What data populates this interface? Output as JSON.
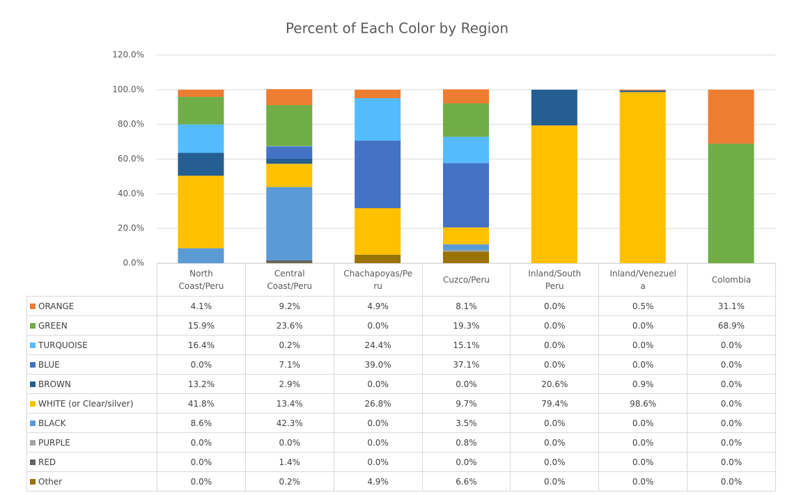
{
  "chart_data": {
    "type": "stacked_bar",
    "title": "Percent of Each Color by Region",
    "categories": [
      "North Coast/Peru",
      "Central Coast/Peru",
      "Chachapoyas/Peru",
      "Cuzco/Peru",
      "Inland/South Peru",
      "Inland/Venezuela",
      "Colombia"
    ],
    "series": [
      {
        "name": "ORANGE",
        "color": "#ed7d31",
        "values": [
          4.1,
          9.2,
          4.9,
          8.1,
          0.0,
          0.5,
          31.1
        ],
        "value_labels": [
          "4.1%",
          "9.2%",
          "4.9%",
          "8.1%",
          "0.0%",
          "0.5%",
          "31.1%"
        ]
      },
      {
        "name": "GREEN",
        "color": "#70ad47",
        "values": [
          15.9,
          23.6,
          0.0,
          19.3,
          0.0,
          0.0,
          68.9
        ],
        "value_labels": [
          "15.9%",
          "23.6%",
          "0.0%",
          "19.3%",
          "0.0%",
          "0.0%",
          "68.9%"
        ]
      },
      {
        "name": "TURQUOISE",
        "color": "#55bbff",
        "values": [
          16.4,
          0.2,
          24.4,
          15.1,
          0.0,
          0.0,
          0.0
        ],
        "value_labels": [
          "16.4%",
          "0.2%",
          "24.4%",
          "15.1%",
          "0.0%",
          "0.0%",
          "0.0%"
        ]
      },
      {
        "name": "BLUE",
        "color": "#4472c4",
        "values": [
          0.0,
          7.1,
          39.0,
          37.1,
          0.0,
          0.0,
          0.0
        ],
        "value_labels": [
          "0.0%",
          "7.1%",
          "39.0%",
          "37.1%",
          "0.0%",
          "0.0%",
          "0.0%"
        ]
      },
      {
        "name": "BROWN",
        "color": "#255e91",
        "values": [
          13.2,
          2.9,
          0.0,
          0.0,
          20.6,
          0.9,
          0.0
        ],
        "value_labels": [
          "13.2%",
          "2.9%",
          "0.0%",
          "0.0%",
          "20.6%",
          "0.9%",
          "0.0%"
        ]
      },
      {
        "name": "WHITE (or Clear/silver)",
        "color": "#ffc000",
        "values": [
          41.8,
          13.4,
          26.8,
          9.7,
          79.4,
          98.6,
          0.0
        ],
        "value_labels": [
          "41.8%",
          "13.4%",
          "26.8%",
          "9.7%",
          "79.4%",
          "98.6%",
          "0.0%"
        ]
      },
      {
        "name": "BLACK",
        "color": "#5b9bd5",
        "values": [
          8.6,
          42.3,
          0.0,
          3.5,
          0.0,
          0.0,
          0.0
        ],
        "value_labels": [
          "8.6%",
          "42.3%",
          "0.0%",
          "3.5%",
          "0.0%",
          "0.0%",
          "0.0%"
        ]
      },
      {
        "name": "PURPLE",
        "color": "#a5a5a5",
        "values": [
          0.0,
          0.0,
          0.0,
          0.8,
          0.0,
          0.0,
          0.0
        ],
        "value_labels": [
          "0.0%",
          "0.0%",
          "0.0%",
          "0.8%",
          "0.0%",
          "0.0%",
          "0.0%"
        ]
      },
      {
        "name": "RED",
        "color": "#636363",
        "values": [
          0.0,
          1.4,
          0.0,
          0.0,
          0.0,
          0.0,
          0.0
        ],
        "value_labels": [
          "0.0%",
          "1.4%",
          "0.0%",
          "0.0%",
          "0.0%",
          "0.0%",
          "0.0%"
        ]
      },
      {
        "name": "Other",
        "color": "#997300",
        "values": [
          0.0,
          0.2,
          4.9,
          6.6,
          0.0,
          0.0,
          0.0
        ],
        "value_labels": [
          "0.0%",
          "0.2%",
          "4.9%",
          "6.6%",
          "0.0%",
          "0.0%",
          "0.0%"
        ]
      }
    ],
    "ylim": [
      0,
      120
    ],
    "yticks": [
      {
        "value": 0,
        "label": "0.0%"
      },
      {
        "value": 20,
        "label": "20.0%"
      },
      {
        "value": 40,
        "label": "40.0%"
      },
      {
        "value": 60,
        "label": "60.0%"
      },
      {
        "value": 80,
        "label": "80.0%"
      },
      {
        "value": 100,
        "label": "100.0%"
      },
      {
        "value": 120,
        "label": "120.0%"
      }
    ],
    "grid": true
  }
}
